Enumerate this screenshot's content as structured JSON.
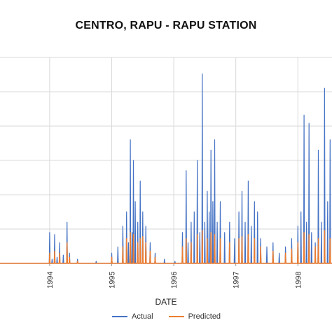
{
  "chart_data": {
    "type": "line",
    "title": "CENTRO, RAPU - RAPU STATION",
    "xlabel": "DATE",
    "ylabel": "",
    "x_tick_labels": [
      "1994",
      "1995",
      "1996",
      "1997",
      "1998"
    ],
    "xlim": [
      1993.2,
      1998.55
    ],
    "ylim": [
      0,
      1
    ],
    "grid": true,
    "legend_position": "bottom",
    "series": [
      {
        "name": "Actual",
        "color": "#4472C4",
        "points": [
          [
            1993.95,
            0.0
          ],
          [
            1994.0,
            0.15
          ],
          [
            1994.04,
            0.02
          ],
          [
            1994.08,
            0.14
          ],
          [
            1994.12,
            0.03
          ],
          [
            1994.16,
            0.1
          ],
          [
            1994.22,
            0.04
          ],
          [
            1994.28,
            0.2
          ],
          [
            1994.32,
            0.05
          ],
          [
            1994.45,
            0.02
          ],
          [
            1994.75,
            0.01
          ],
          [
            1995.0,
            0.05
          ],
          [
            1995.1,
            0.08
          ],
          [
            1995.18,
            0.18
          ],
          [
            1995.24,
            0.25
          ],
          [
            1995.27,
            0.1
          ],
          [
            1995.3,
            0.6
          ],
          [
            1995.33,
            0.15
          ],
          [
            1995.35,
            0.5
          ],
          [
            1995.38,
            0.3
          ],
          [
            1995.42,
            0.2
          ],
          [
            1995.46,
            0.4
          ],
          [
            1995.5,
            0.25
          ],
          [
            1995.55,
            0.18
          ],
          [
            1995.62,
            0.1
          ],
          [
            1995.7,
            0.05
          ],
          [
            1995.85,
            0.02
          ],
          [
            1996.02,
            0.01
          ],
          [
            1996.14,
            0.15
          ],
          [
            1996.2,
            0.45
          ],
          [
            1996.23,
            0.1
          ],
          [
            1996.28,
            0.2
          ],
          [
            1996.33,
            0.25
          ],
          [
            1996.38,
            0.5
          ],
          [
            1996.42,
            0.15
          ],
          [
            1996.46,
            0.92
          ],
          [
            1996.5,
            0.2
          ],
          [
            1996.54,
            0.35
          ],
          [
            1996.57,
            0.25
          ],
          [
            1996.6,
            0.55
          ],
          [
            1996.63,
            0.3
          ],
          [
            1996.66,
            0.6
          ],
          [
            1996.7,
            0.2
          ],
          [
            1996.75,
            0.3
          ],
          [
            1996.82,
            0.15
          ],
          [
            1996.9,
            0.2
          ],
          [
            1996.98,
            0.12
          ],
          [
            1997.05,
            0.25
          ],
          [
            1997.1,
            0.35
          ],
          [
            1997.15,
            0.2
          ],
          [
            1997.2,
            0.4
          ],
          [
            1997.25,
            0.18
          ],
          [
            1997.3,
            0.3
          ],
          [
            1997.35,
            0.25
          ],
          [
            1997.4,
            0.12
          ],
          [
            1997.5,
            0.08
          ],
          [
            1997.6,
            0.1
          ],
          [
            1997.7,
            0.05
          ],
          [
            1997.8,
            0.08
          ],
          [
            1997.9,
            0.12
          ],
          [
            1998.0,
            0.18
          ],
          [
            1998.05,
            0.25
          ],
          [
            1998.1,
            0.72
          ],
          [
            1998.14,
            0.2
          ],
          [
            1998.18,
            0.68
          ],
          [
            1998.22,
            0.15
          ],
          [
            1998.28,
            0.1
          ],
          [
            1998.33,
            0.55
          ],
          [
            1998.38,
            0.2
          ],
          [
            1998.43,
            0.85
          ],
          [
            1998.48,
            0.3
          ],
          [
            1998.52,
            0.6
          ]
        ]
      },
      {
        "name": "Predicted",
        "color": "#ED7D31",
        "points": [
          [
            1993.95,
            0.0
          ],
          [
            1994.0,
            0.05
          ],
          [
            1994.08,
            0.06
          ],
          [
            1994.16,
            0.05
          ],
          [
            1994.28,
            0.1
          ],
          [
            1994.32,
            0.03
          ],
          [
            1994.45,
            0.01
          ],
          [
            1995.0,
            0.03
          ],
          [
            1995.18,
            0.08
          ],
          [
            1995.24,
            0.12
          ],
          [
            1995.3,
            0.15
          ],
          [
            1995.35,
            0.14
          ],
          [
            1995.42,
            0.1
          ],
          [
            1995.46,
            0.12
          ],
          [
            1995.5,
            0.13
          ],
          [
            1995.55,
            0.1
          ],
          [
            1995.62,
            0.06
          ],
          [
            1995.7,
            0.03
          ],
          [
            1996.14,
            0.08
          ],
          [
            1996.2,
            0.12
          ],
          [
            1996.28,
            0.1
          ],
          [
            1996.38,
            0.14
          ],
          [
            1996.46,
            0.16
          ],
          [
            1996.54,
            0.12
          ],
          [
            1996.6,
            0.15
          ],
          [
            1996.66,
            0.14
          ],
          [
            1996.75,
            0.12
          ],
          [
            1996.9,
            0.1
          ],
          [
            1997.05,
            0.12
          ],
          [
            1997.1,
            0.13
          ],
          [
            1997.2,
            0.14
          ],
          [
            1997.3,
            0.12
          ],
          [
            1997.4,
            0.08
          ],
          [
            1997.6,
            0.06
          ],
          [
            1997.8,
            0.05
          ],
          [
            1997.9,
            0.07
          ],
          [
            1998.0,
            0.1
          ],
          [
            1998.1,
            0.15
          ],
          [
            1998.18,
            0.14
          ],
          [
            1998.28,
            0.08
          ],
          [
            1998.33,
            0.12
          ],
          [
            1998.43,
            0.16
          ],
          [
            1998.52,
            0.12
          ]
        ]
      }
    ]
  }
}
